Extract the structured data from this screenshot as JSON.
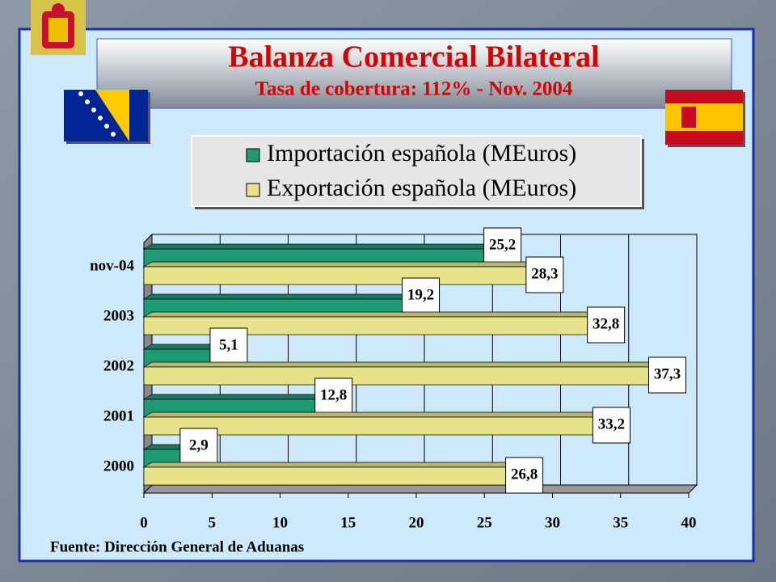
{
  "chart_data": {
    "type": "hbar",
    "title": "Balanza Comercial Bilateral",
    "subtitle": "Tasa de cobertura: 112% - Nov. 2004",
    "source": "Fuente: Dirección General de Aduanas",
    "categories": [
      "nov-04",
      "2003",
      "2002",
      "2001",
      "2000"
    ],
    "series": [
      {
        "name": "Importación española (MEuros)",
        "color": "#1e9a74",
        "values": [
          25.2,
          19.2,
          5.1,
          12.8,
          2.9
        ],
        "value_labels": [
          "25,2",
          "19,2",
          "5,1",
          "12,8",
          "2,9"
        ]
      },
      {
        "name": "Exportación española (MEuros)",
        "color": "#e6e38a",
        "values": [
          28.3,
          32.8,
          37.3,
          33.2,
          26.8
        ],
        "value_labels": [
          "28,3",
          "32,8",
          "37,3",
          "33,2",
          "26,8"
        ]
      }
    ],
    "xlim": [
      0,
      40
    ],
    "xticks": [
      0,
      5,
      10,
      15,
      20,
      25,
      30,
      35,
      40
    ],
    "grid": true
  }
}
